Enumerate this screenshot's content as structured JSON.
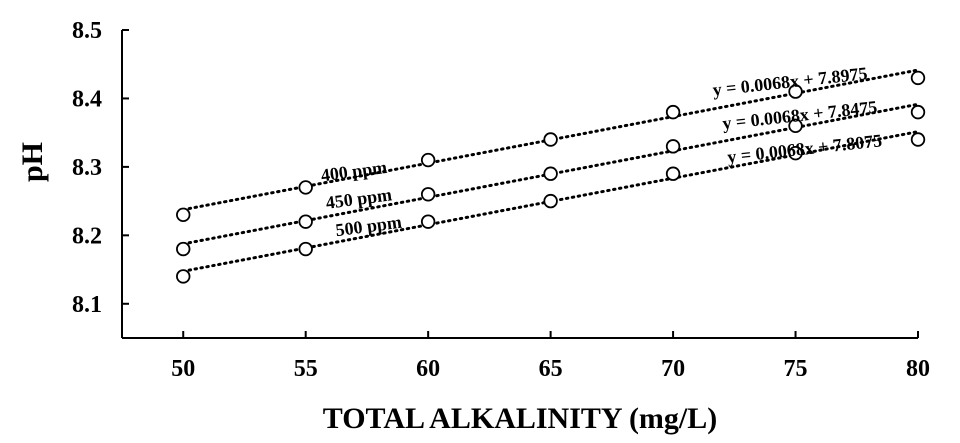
{
  "chart_data": {
    "type": "scatter",
    "title": "",
    "xlabel": "TOTAL  ALKALINITY (mg/L)",
    "ylabel": "pH",
    "xlim": [
      47.5,
      80
    ],
    "ylim": [
      8.05,
      8.5
    ],
    "x_ticks": [
      50,
      55,
      60,
      65,
      70,
      75,
      80
    ],
    "y_ticks": [
      8.1,
      8.2,
      8.3,
      8.4,
      8.5
    ],
    "x_tick_labels": [
      "50",
      "55",
      "60",
      "65",
      "70",
      "75",
      "80"
    ],
    "y_tick_labels": [
      "8.1",
      "8.2",
      "8.3",
      "8.4",
      "8.5"
    ],
    "grid": false,
    "legend": "none",
    "x": [
      50,
      55,
      60,
      65,
      70,
      75,
      80
    ],
    "series": [
      {
        "name": "400 ppm",
        "values": [
          8.23,
          8.27,
          8.31,
          8.34,
          8.38,
          8.41,
          8.43
        ],
        "trendline": {
          "slope": 0.0068,
          "intercept": 7.8975,
          "equation": "y = 0.0068x + 7.8975"
        }
      },
      {
        "name": "450 ppm",
        "values": [
          8.18,
          8.22,
          8.26,
          8.29,
          8.33,
          8.36,
          8.38
        ],
        "trendline": {
          "slope": 0.0068,
          "intercept": 7.8475,
          "equation": "y = 0.0068x + 7.8475"
        }
      },
      {
        "name": "500 ppm",
        "values": [
          8.14,
          8.18,
          8.22,
          8.25,
          8.29,
          8.32,
          8.34
        ],
        "trendline": {
          "slope": 0.0068,
          "intercept": 7.8075,
          "equation": "y = 0.0068x + 7.8075"
        }
      }
    ]
  }
}
